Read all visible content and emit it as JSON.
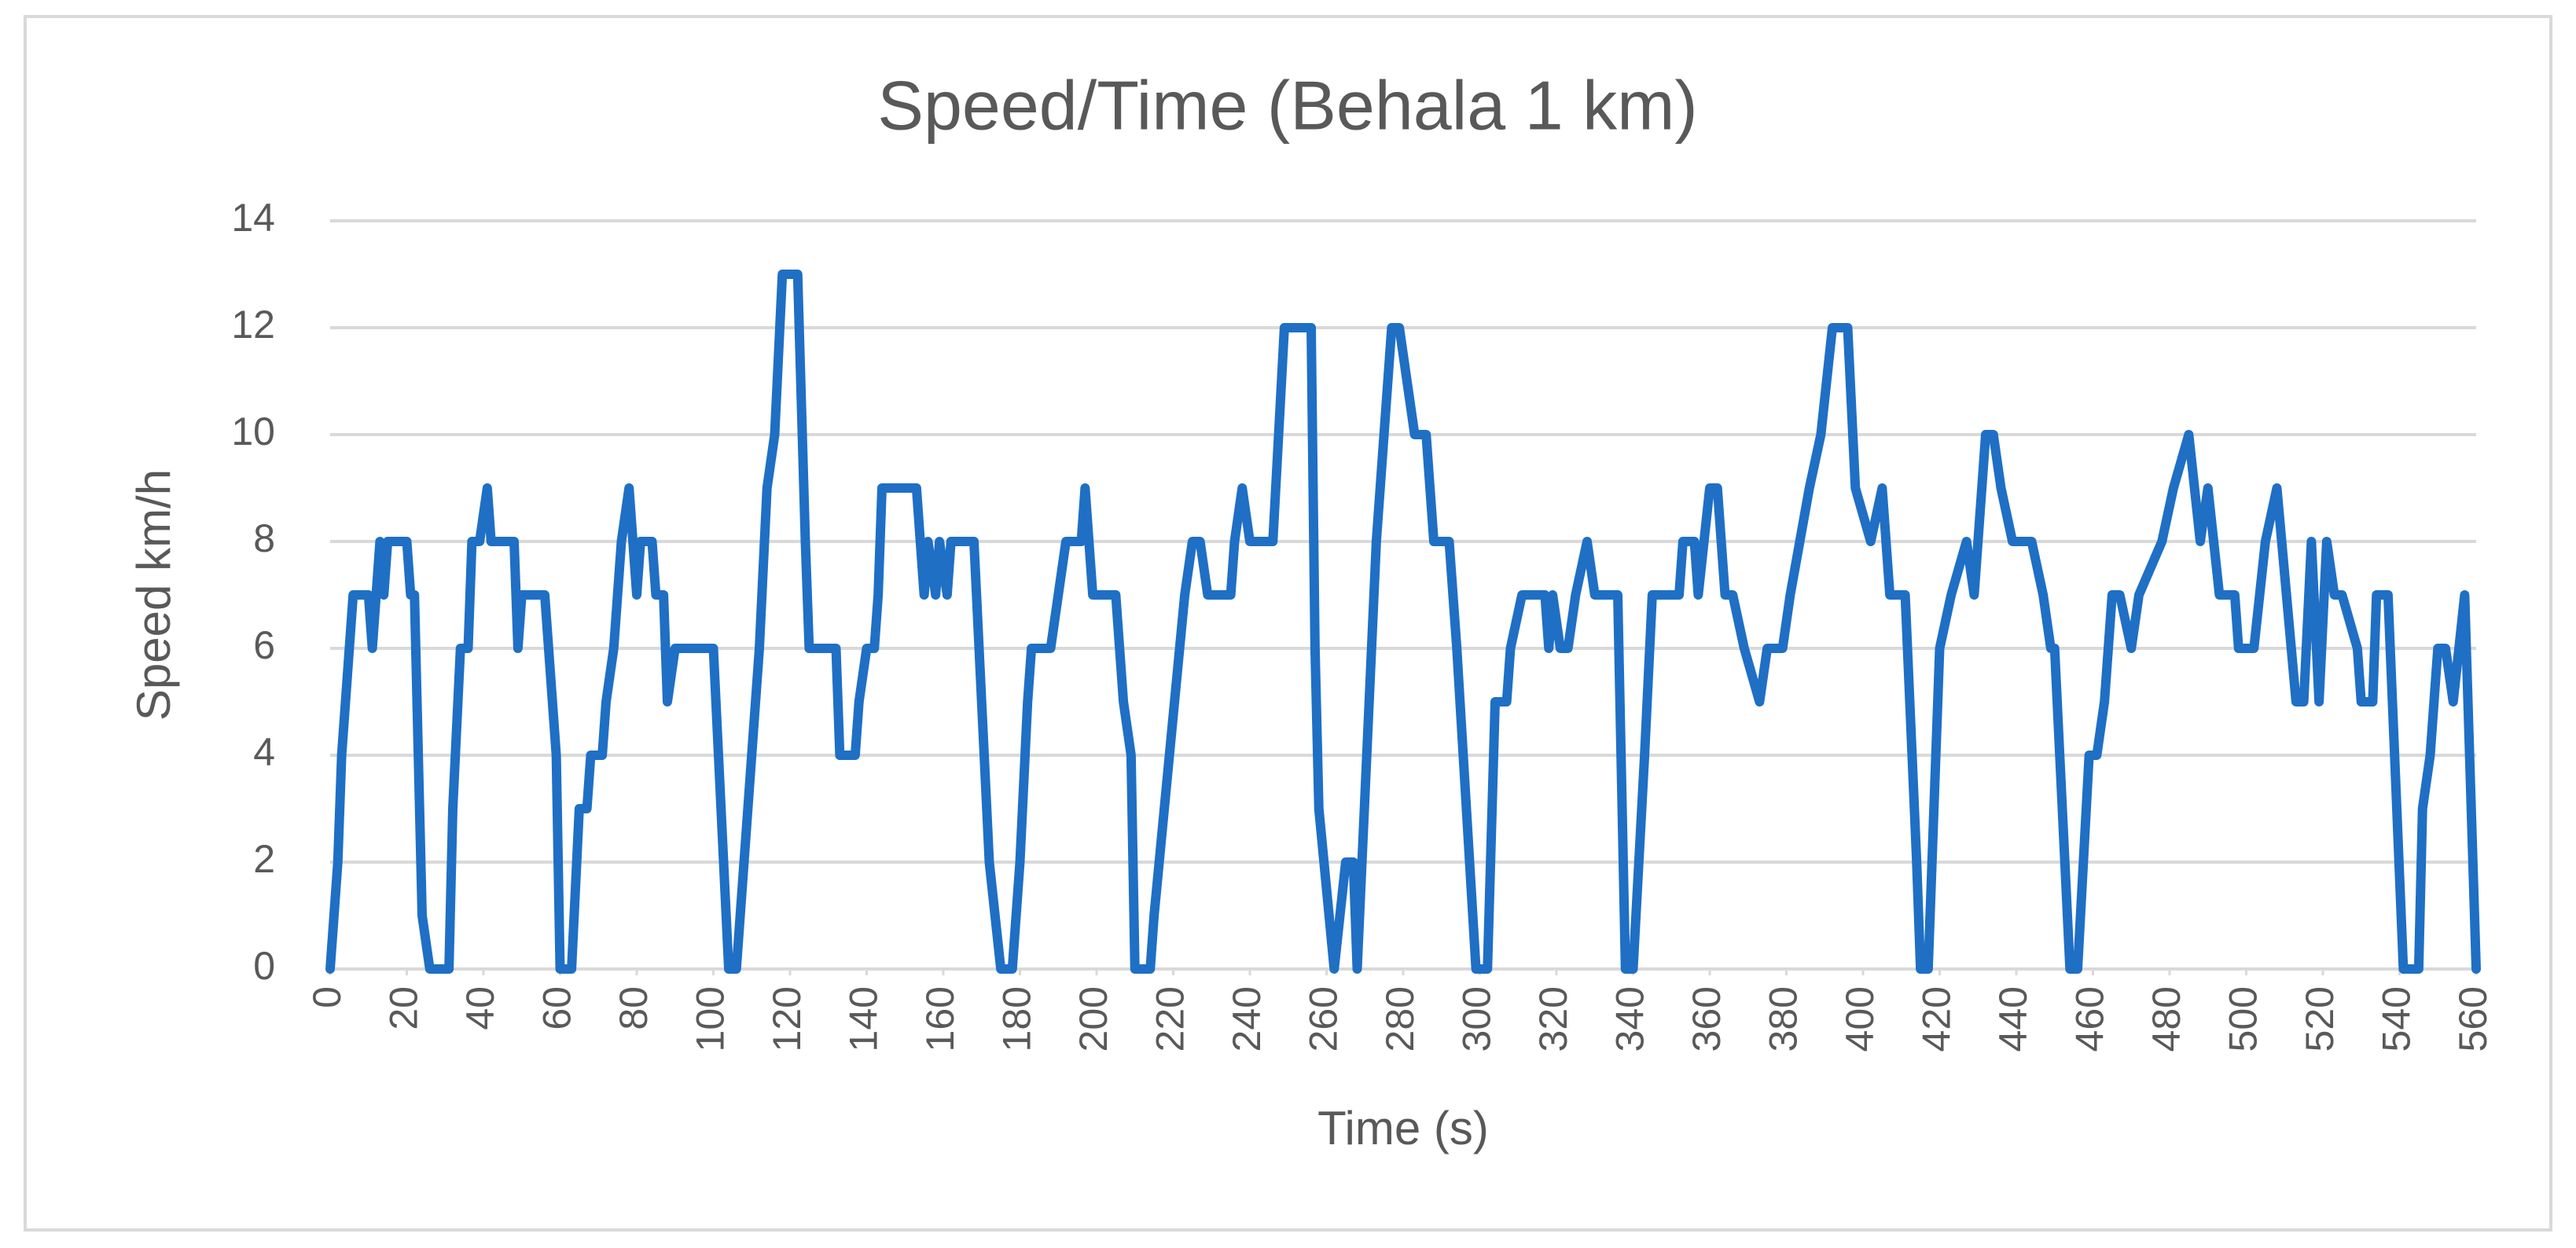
{
  "chart_data": {
    "type": "line",
    "title": "Speed/Time (Behala 1 km)",
    "x_label": "Time (s)",
    "y_label": "Speed km/h",
    "xlim": [
      0,
      560
    ],
    "xticks": [
      0,
      20,
      40,
      60,
      80,
      100,
      120,
      140,
      160,
      180,
      200,
      220,
      240,
      260,
      280,
      300,
      320,
      340,
      360,
      380,
      400,
      420,
      440,
      460,
      480,
      500,
      520,
      540,
      560
    ],
    "ylim": [
      0,
      14
    ],
    "yticks": [
      0,
      2,
      4,
      6,
      8,
      10,
      12,
      14
    ],
    "grid": true,
    "series": [
      {
        "name": "Speed km/h",
        "color": "#1f6fc5",
        "x": [
          0,
          2,
          3,
          5,
          6,
          10,
          11,
          12,
          13,
          14,
          15,
          20,
          21,
          22,
          23,
          24,
          26,
          31,
          32,
          34,
          36,
          37,
          39,
          41,
          42,
          48,
          49,
          50,
          56,
          57,
          59,
          60,
          63,
          65,
          67,
          68,
          71,
          72,
          74,
          76,
          78,
          80,
          81,
          84,
          85,
          87,
          88,
          90,
          100,
          104,
          106,
          108,
          112,
          114,
          116,
          118,
          122,
          124,
          125,
          132,
          133,
          137,
          138,
          140,
          142,
          143,
          144,
          153,
          154,
          155,
          156,
          158,
          159,
          161,
          162,
          168,
          172,
          175,
          178,
          180,
          182,
          183,
          188,
          192,
          196,
          197,
          199,
          205,
          207,
          209,
          210,
          214,
          215,
          223,
          225,
          227,
          229,
          235,
          236,
          238,
          240,
          246,
          249,
          256,
          257,
          258,
          262,
          265,
          267,
          268,
          273,
          277,
          279,
          281,
          283,
          286,
          288,
          292,
          294,
          299,
          302,
          304,
          307,
          308,
          311,
          317,
          318,
          319,
          321,
          323,
          325,
          328,
          330,
          336,
          338,
          340,
          343,
          345,
          352,
          353,
          356,
          357,
          360,
          362,
          364,
          366,
          369,
          373,
          375,
          379,
          381,
          386,
          389,
          392,
          396,
          398,
          402,
          405,
          407,
          411,
          414,
          415,
          417,
          420,
          423,
          427,
          429,
          432,
          434,
          436,
          439,
          444,
          447,
          449,
          450,
          454,
          456,
          459,
          461,
          463,
          465,
          467,
          470,
          472,
          478,
          481,
          485,
          488,
          490,
          493,
          497,
          498,
          502,
          505,
          508,
          513,
          515,
          517,
          519,
          521,
          523,
          525,
          529,
          530,
          533,
          534,
          537,
          541,
          545,
          546,
          548,
          550,
          552,
          554,
          557,
          560
        ],
        "values": [
          0,
          2,
          4,
          6,
          7,
          7,
          6,
          7,
          8,
          7,
          8,
          8,
          7,
          7,
          4,
          1,
          0,
          0,
          3,
          6,
          6,
          8,
          8,
          9,
          8,
          8,
          6,
          7,
          7,
          6,
          4,
          0,
          0,
          3,
          3,
          4,
          4,
          5,
          6,
          8,
          9,
          7,
          8,
          8,
          7,
          7,
          5,
          6,
          6,
          0,
          0,
          2,
          6,
          9,
          10,
          13,
          13,
          8,
          6,
          6,
          4,
          4,
          5,
          6,
          6,
          7,
          9,
          9,
          8,
          7,
          8,
          7,
          8,
          7,
          8,
          8,
          2,
          0,
          0,
          2,
          5,
          6,
          6,
          8,
          8,
          9,
          7,
          7,
          5,
          4,
          0,
          0,
          1,
          7,
          8,
          8,
          7,
          7,
          8,
          9,
          8,
          8,
          12,
          12,
          6,
          3,
          0,
          2,
          2,
          0,
          8,
          12,
          12,
          11,
          10,
          10,
          8,
          8,
          6,
          0,
          0,
          5,
          5,
          6,
          7,
          7,
          6,
          7,
          6,
          6,
          7,
          8,
          7,
          7,
          0,
          0,
          4,
          7,
          7,
          8,
          8,
          7,
          9,
          9,
          7,
          7,
          6,
          5,
          6,
          6,
          7,
          9,
          10,
          12,
          12,
          9,
          8,
          9,
          7,
          7,
          2,
          0,
          0,
          6,
          7,
          8,
          7,
          10,
          10,
          9,
          8,
          8,
          7,
          6,
          6,
          0,
          0,
          4,
          4,
          5,
          7,
          7,
          6,
          7,
          8,
          9,
          10,
          8,
          9,
          7,
          7,
          6,
          6,
          8,
          9,
          5,
          5,
          8,
          5,
          8,
          7,
          7,
          6,
          5,
          5,
          7,
          7,
          0,
          0,
          3,
          4,
          6,
          6,
          5,
          7,
          0
        ]
      }
    ]
  }
}
